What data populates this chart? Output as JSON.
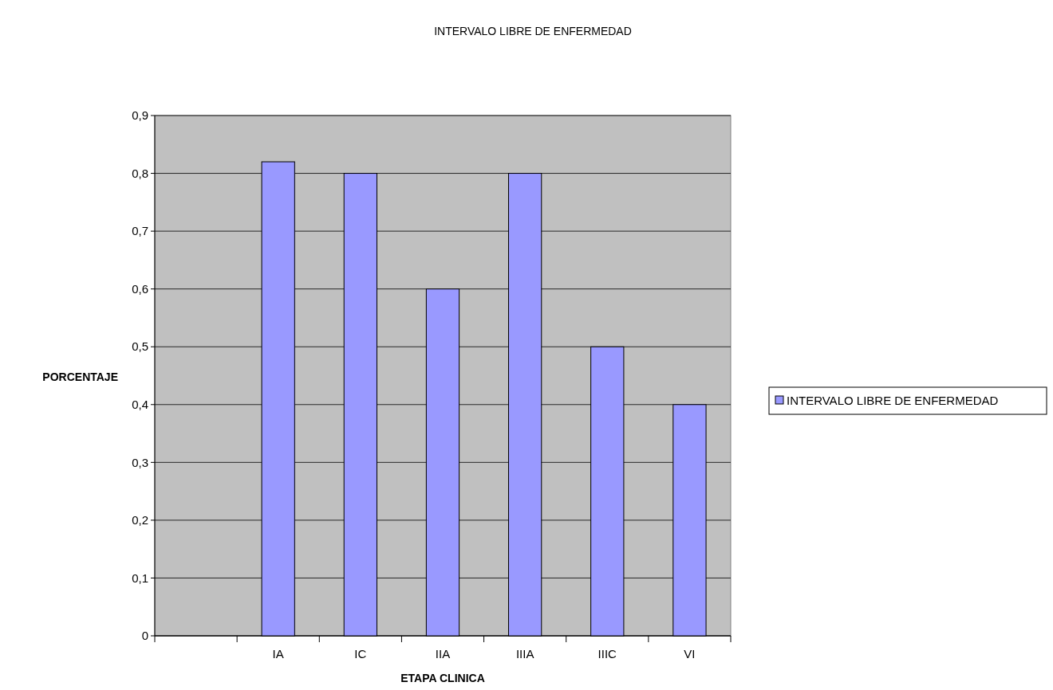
{
  "chart_data": {
    "type": "bar",
    "title": "INTERVALO LIBRE DE ENFERMEDAD",
    "xlabel": "ETAPA CLINICA",
    "ylabel": "PORCENTAJE",
    "categories": [
      null,
      "IA",
      "IC",
      "IIA",
      "IIIA",
      "IIIC",
      "VI"
    ],
    "series": [
      {
        "name": "INTERVALO LIBRE DE ENFERMEDAD",
        "color": "#9999ff",
        "values": [
          null,
          0.82,
          0.8,
          0.6,
          0.8,
          0.5,
          0.4
        ]
      }
    ],
    "ylim": [
      0,
      0.9
    ],
    "yticks": [
      0,
      {
        "value": 0.1,
        "label": "0,1"
      },
      {
        "value": 0.2,
        "label": "0,2"
      },
      {
        "value": 0.3,
        "label": "0,3"
      },
      {
        "value": 0.4,
        "label": "0,4"
      },
      {
        "value": 0.5,
        "label": "0,5"
      },
      {
        "value": 0.6,
        "label": "0,6"
      },
      {
        "value": 0.7,
        "label": "0,7"
      },
      {
        "value": 0.8,
        "label": "0,8"
      },
      {
        "value": 0.9,
        "label": "0,9"
      }
    ],
    "grid": "y",
    "legend": "right"
  }
}
